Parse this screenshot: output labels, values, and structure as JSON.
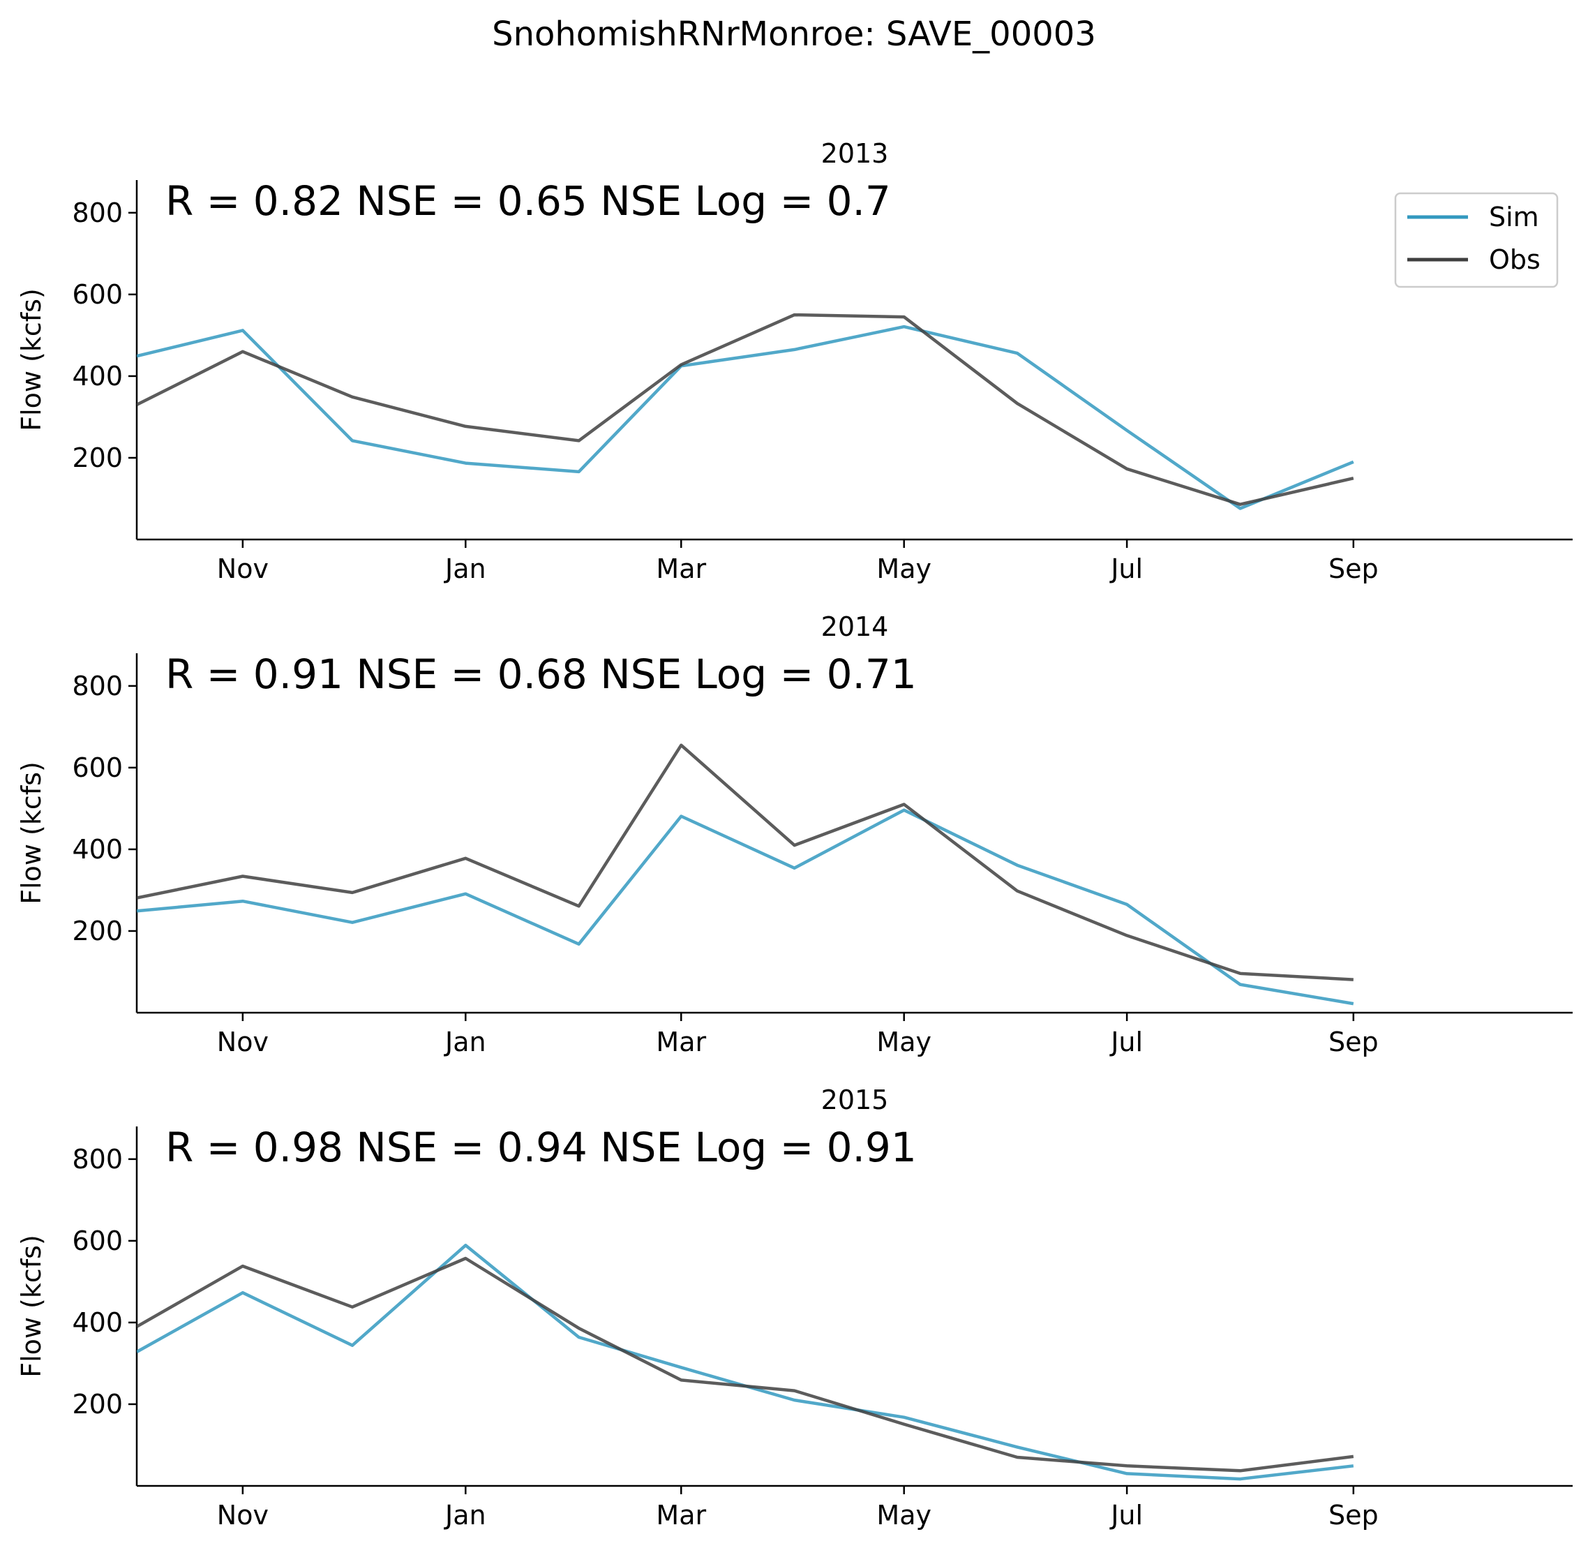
{
  "suptitle": "SnohomishRNrMonroe: SAVE_00003",
  "legend": {
    "entries": [
      {
        "label": "Sim",
        "color": "#3399bf"
      },
      {
        "label": "Obs",
        "color": "#3f3f3f"
      }
    ],
    "placement": "top-right",
    "shown_on_panel": 0
  },
  "chart_data": [
    {
      "type": "line",
      "title": "2013",
      "annotation": "R = 0.82  NSE = 0.65  NSE Log = 0.7",
      "ylabel": "Flow (kcfs)",
      "xlabel": "",
      "xlim": [
        "2012-10-03",
        "2013-10-31"
      ],
      "ylim": [
        0,
        880
      ],
      "yticks": [
        200,
        400,
        600,
        800
      ],
      "xticks": [
        {
          "date": "2012-11-01",
          "label": "Nov"
        },
        {
          "date": "2013-01-01",
          "label": "Jan"
        },
        {
          "date": "2013-03-01",
          "label": "Mar"
        },
        {
          "date": "2013-05-01",
          "label": "May"
        },
        {
          "date": "2013-07-01",
          "label": "Jul"
        },
        {
          "date": "2013-09-01",
          "label": "Sep"
        }
      ],
      "x": [
        "2012-10-03",
        "2012-11-01",
        "2012-12-01",
        "2013-01-01",
        "2013-02-01",
        "2013-03-01",
        "2013-04-01",
        "2013-05-01",
        "2013-06-01",
        "2013-07-01",
        "2013-08-01",
        "2013-09-01"
      ],
      "series": [
        {
          "name": "Sim",
          "color": "#3399bf",
          "values": [
            449,
            512,
            242,
            187,
            166,
            425,
            465,
            521,
            456,
            267,
            76,
            190
          ]
        },
        {
          "name": "Obs",
          "color": "#3f3f3f",
          "values": [
            330,
            460,
            349,
            277,
            242,
            428,
            550,
            545,
            333,
            173,
            86,
            150
          ]
        }
      ]
    },
    {
      "type": "line",
      "title": "2014",
      "annotation": "R = 0.91  NSE = 0.68  NSE Log = 0.71",
      "ylabel": "Flow (kcfs)",
      "xlabel": "",
      "xlim": [
        "2013-10-03",
        "2014-10-31"
      ],
      "ylim": [
        0,
        880
      ],
      "yticks": [
        200,
        400,
        600,
        800
      ],
      "xticks": [
        {
          "date": "2013-11-01",
          "label": "Nov"
        },
        {
          "date": "2014-01-01",
          "label": "Jan"
        },
        {
          "date": "2014-03-01",
          "label": "Mar"
        },
        {
          "date": "2014-05-01",
          "label": "May"
        },
        {
          "date": "2014-07-01",
          "label": "Jul"
        },
        {
          "date": "2014-09-01",
          "label": "Sep"
        }
      ],
      "x": [
        "2013-10-03",
        "2013-11-01",
        "2013-12-01",
        "2014-01-01",
        "2014-02-01",
        "2014-03-01",
        "2014-04-01",
        "2014-05-01",
        "2014-06-01",
        "2014-07-01",
        "2014-08-01",
        "2014-09-01"
      ],
      "series": [
        {
          "name": "Sim",
          "color": "#3399bf",
          "values": [
            249,
            273,
            221,
            291,
            168,
            481,
            354,
            496,
            361,
            265,
            69,
            22
          ]
        },
        {
          "name": "Obs",
          "color": "#3f3f3f",
          "values": [
            281,
            334,
            294,
            378,
            261,
            655,
            410,
            510,
            298,
            189,
            96,
            81
          ]
        }
      ]
    },
    {
      "type": "line",
      "title": "2015",
      "annotation": "R = 0.98  NSE = 0.94  NSE Log = 0.91",
      "ylabel": "Flow (kcfs)",
      "xlabel": "",
      "xlim": [
        "2014-10-03",
        "2015-10-31"
      ],
      "ylim": [
        0,
        880
      ],
      "yticks": [
        200,
        400,
        600,
        800
      ],
      "xticks": [
        {
          "date": "2014-11-01",
          "label": "Nov"
        },
        {
          "date": "2015-01-01",
          "label": "Jan"
        },
        {
          "date": "2015-03-01",
          "label": "Mar"
        },
        {
          "date": "2015-05-01",
          "label": "May"
        },
        {
          "date": "2015-07-01",
          "label": "Jul"
        },
        {
          "date": "2015-09-01",
          "label": "Sep"
        }
      ],
      "x": [
        "2014-10-03",
        "2014-11-01",
        "2014-12-01",
        "2015-01-01",
        "2015-02-01",
        "2015-03-01",
        "2015-04-01",
        "2015-05-01",
        "2015-06-01",
        "2015-07-01",
        "2015-08-01",
        "2015-09-01"
      ],
      "series": [
        {
          "name": "Sim",
          "color": "#3399bf",
          "values": [
            328,
            473,
            344,
            589,
            364,
            290,
            210,
            168,
            95,
            30,
            17,
            49
          ]
        },
        {
          "name": "Obs",
          "color": "#3f3f3f",
          "values": [
            390,
            538,
            438,
            557,
            386,
            259,
            233,
            151,
            70,
            49,
            37,
            72
          ]
        }
      ]
    }
  ]
}
